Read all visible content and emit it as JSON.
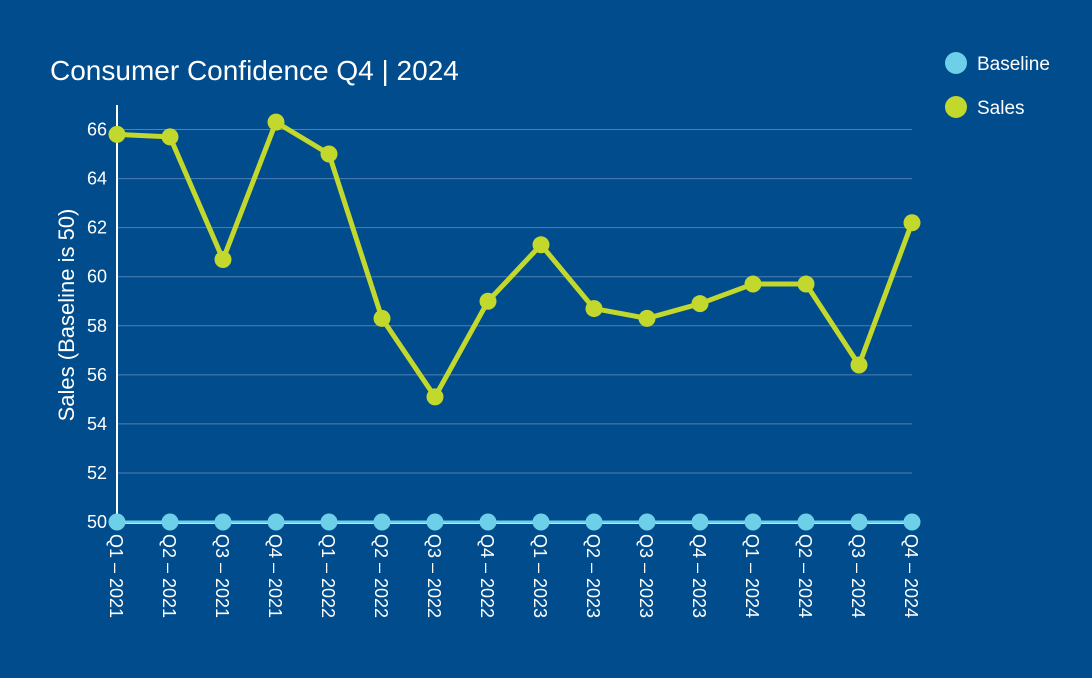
{
  "chart_data": {
    "type": "line",
    "title": "Consumer Confidence Q4 | 2024",
    "ylabel": "Sales (Baseline is 50)",
    "xlabel": "",
    "ylim": [
      50,
      67
    ],
    "yticks": [
      50,
      52,
      54,
      56,
      58,
      60,
      62,
      64,
      66
    ],
    "grid": "horizontal",
    "legend_placement": "top-right",
    "categories": [
      "Q1 – 2021",
      "Q2 – 2021",
      "Q3 – 2021",
      "Q4 – 2021",
      "Q1 – 2022",
      "Q2 – 2022",
      "Q3 – 2022",
      "Q4 – 2022",
      "Q1 – 2023",
      "Q2 – 2023",
      "Q3 – 2023",
      "Q4 – 2023",
      "Q1 – 2024",
      "Q2 – 2024",
      "Q3 – 2024",
      "Q4 – 2024"
    ],
    "series": [
      {
        "name": "Baseline",
        "color": "#6ecfe8",
        "values": [
          50,
          50,
          50,
          50,
          50,
          50,
          50,
          50,
          50,
          50,
          50,
          50,
          50,
          50,
          50,
          50
        ]
      },
      {
        "name": "Sales",
        "color": "#c3d82c",
        "values": [
          65.8,
          65.7,
          60.7,
          66.3,
          65.0,
          58.3,
          55.1,
          59.0,
          61.3,
          58.7,
          58.3,
          58.9,
          59.7,
          59.7,
          56.4,
          62.2
        ]
      }
    ]
  },
  "colors": {
    "background": "#004c8c",
    "gridline": "#4f7fb3",
    "axis": "#ffffff",
    "text": "#ffffff"
  }
}
